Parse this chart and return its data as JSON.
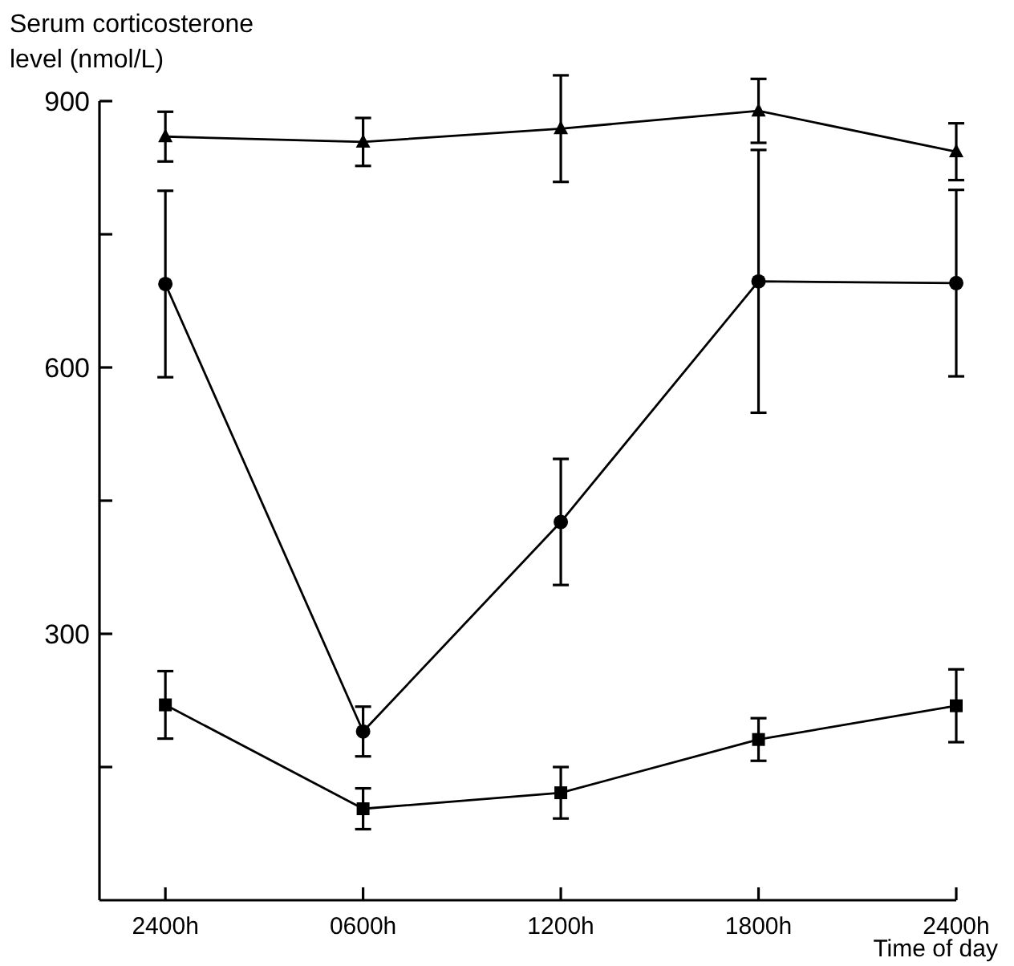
{
  "chart_data": {
    "type": "line",
    "ylabel": "Serum corticosterone level (nmol/L)",
    "xlabel": "Time of day",
    "categories": [
      "2400h",
      "0600h",
      "1200h",
      "1800h",
      "2400h"
    ],
    "ylim": [
      0,
      900
    ],
    "yticks": [
      {
        "value": 150,
        "label": null
      },
      300,
      {
        "value": 450,
        "label": null
      },
      600,
      {
        "value": 750,
        "label": null
      },
      900
    ],
    "grid": false,
    "line_style": "solid",
    "series": [
      {
        "color": "#000000",
        "marker": "triangle",
        "values": [
          860,
          854,
          869,
          889,
          843
        ],
        "errors": [
          28,
          27,
          60,
          36,
          32
        ]
      },
      {
        "color": "#000000",
        "marker": "circle",
        "values": [
          694,
          190,
          426,
          697,
          695
        ],
        "errors": [
          105,
          28,
          71,
          148,
          105
        ]
      },
      {
        "color": "#000000",
        "marker": "square",
        "values": [
          220,
          103,
          121,
          181,
          219
        ],
        "errors": [
          38,
          23,
          29,
          24,
          41
        ]
      }
    ]
  }
}
